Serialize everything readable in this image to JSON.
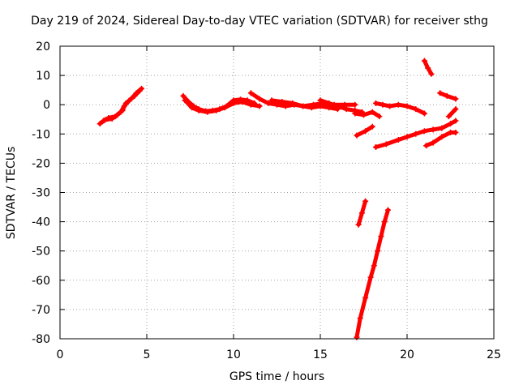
{
  "chart_data": {
    "type": "scatter",
    "title": "Day 219 of 2024, Sidereal Day-to-day VTEC variation (SDTVAR) for receiver sthg",
    "xlabel": "GPS time / hours",
    "ylabel": "SDTVAR / TECUs",
    "xlim": [
      0,
      25
    ],
    "ylim": [
      -80,
      20
    ],
    "xticks": [
      0,
      5,
      10,
      15,
      20,
      25
    ],
    "yticks": [
      -80,
      -70,
      -60,
      -50,
      -40,
      -30,
      -20,
      -10,
      0,
      10,
      20
    ],
    "grid": true,
    "grid_style": "dotted",
    "marker": "+",
    "series_color": "#ff0000",
    "series": [
      {
        "x": [
          2.3,
          2.6,
          3.0,
          3.3,
          3.6,
          3.8,
          4.1,
          4.4,
          4.7
        ],
        "y": [
          -6.5,
          -5.2,
          -4.8,
          -3.5,
          -2.0,
          0.5,
          2.0,
          4.0,
          5.5
        ]
      },
      {
        "x": [
          2.5,
          2.8,
          3.2,
          3.5,
          3.7,
          4.0,
          4.3,
          4.6
        ],
        "y": [
          -5.5,
          -4.5,
          -4.0,
          -2.5,
          -0.5,
          1.5,
          3.0,
          4.8
        ]
      },
      {
        "x": [
          7.1,
          7.4,
          7.7,
          8.0,
          8.4,
          8.8,
          9.2,
          9.6,
          10.0,
          10.4,
          10.8,
          11.2
        ],
        "y": [
          3.0,
          1.0,
          -0.5,
          -1.5,
          -2.2,
          -2.0,
          -1.5,
          -0.5,
          1.5,
          1.8,
          1.5,
          0.5
        ]
      },
      {
        "x": [
          7.2,
          7.6,
          8.0,
          8.5,
          9.0,
          9.5,
          10.0,
          10.5,
          11.0,
          11.5
        ],
        "y": [
          1.5,
          -1.0,
          -2.0,
          -2.5,
          -2.0,
          -1.0,
          0.5,
          1.0,
          0.0,
          -0.5
        ]
      },
      {
        "x": [
          11.0,
          11.5,
          12.0,
          12.5,
          13.0,
          13.5,
          14.0,
          14.5,
          15.0,
          15.5,
          16.0
        ],
        "y": [
          4.0,
          2.0,
          0.5,
          0.0,
          -0.5,
          0.0,
          -0.5,
          -1.0,
          -0.5,
          -1.0,
          -1.5
        ]
      },
      {
        "x": [
          12.2,
          12.8,
          13.4,
          14.0,
          14.6,
          15.2,
          15.8,
          16.4,
          17.0
        ],
        "y": [
          1.5,
          1.0,
          0.5,
          -0.5,
          0.0,
          0.5,
          0.0,
          0.0,
          0.0
        ]
      },
      {
        "x": [
          15.0,
          15.5,
          16.0,
          16.5,
          17.0,
          17.4
        ],
        "y": [
          1.5,
          0.5,
          -0.5,
          -1.5,
          -2.0,
          -2.5
        ]
      },
      {
        "x": [
          17.0,
          17.5,
          18.0,
          18.4
        ],
        "y": [
          -3.0,
          -3.5,
          -2.5,
          -4.0
        ]
      },
      {
        "x": [
          18.2,
          18.6,
          19.0,
          19.5,
          20.0,
          20.5,
          21.0
        ],
        "y": [
          0.5,
          0.0,
          -0.5,
          0.0,
          -0.5,
          -1.5,
          -3.0
        ]
      },
      {
        "x": [
          17.1,
          17.6,
          18.0
        ],
        "y": [
          -10.5,
          -9.0,
          -7.5
        ]
      },
      {
        "x": [
          18.2,
          18.8,
          19.5,
          20.0,
          20.5,
          21.0,
          21.5,
          22.0,
          22.5,
          22.8
        ],
        "y": [
          -14.5,
          -13.5,
          -12.0,
          -11.0,
          -10.0,
          -9.0,
          -8.5,
          -8.0,
          -6.5,
          -5.5
        ]
      },
      {
        "x": [
          21.1,
          21.5,
          22.0,
          22.5,
          22.8
        ],
        "y": [
          -14.0,
          -13.0,
          -11.0,
          -9.5,
          -9.5
        ]
      },
      {
        "x": [
          21.0,
          21.2,
          21.4
        ],
        "y": [
          15.0,
          12.5,
          10.5
        ]
      },
      {
        "x": [
          21.9,
          22.3,
          22.8
        ],
        "y": [
          4.0,
          3.0,
          2.0
        ]
      },
      {
        "x": [
          22.4,
          22.8
        ],
        "y": [
          -4.0,
          -1.5
        ]
      },
      {
        "x": [
          17.2,
          17.4,
          17.6
        ],
        "y": [
          -41.0,
          -37.0,
          -33.0
        ]
      },
      {
        "x": [
          17.1,
          17.3,
          17.6,
          17.9,
          18.1,
          18.3,
          18.5,
          18.7,
          18.9
        ],
        "y": [
          -79.5,
          -73.0,
          -66.0,
          -59.0,
          -55.0,
          -50.0,
          -45.0,
          -40.0,
          -36.0
        ]
      }
    ]
  }
}
